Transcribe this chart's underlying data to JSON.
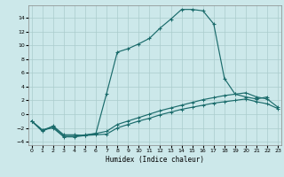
{
  "xlabel": "Humidex (Indice chaleur)",
  "bg_color": "#cce8ea",
  "grid_color": "#aacccc",
  "line_color": "#1a6b6b",
  "xlim": [
    -0.3,
    23.3
  ],
  "ylim": [
    -4.5,
    15.8
  ],
  "xticks": [
    0,
    1,
    2,
    3,
    4,
    5,
    6,
    7,
    8,
    9,
    10,
    11,
    12,
    13,
    14,
    15,
    16,
    17,
    18,
    19,
    20,
    21,
    22,
    23
  ],
  "yticks": [
    -4,
    -2,
    0,
    2,
    4,
    6,
    8,
    10,
    12,
    14
  ],
  "curve1_x": [
    0,
    1,
    2,
    3,
    4,
    5,
    6,
    7,
    8,
    9,
    10,
    11,
    12,
    13,
    14,
    15,
    16,
    17,
    18,
    19,
    20,
    21,
    22
  ],
  "curve1_y": [
    -1,
    -2.5,
    -1.7,
    -3.0,
    -3.0,
    -3.1,
    -2.8,
    3.0,
    9.0,
    9.5,
    10.2,
    11.0,
    12.5,
    13.8,
    15.2,
    15.2,
    15.0,
    13.1,
    5.2,
    2.9,
    2.5,
    2.2,
    2.5
  ],
  "curve2_x": [
    0,
    1,
    2,
    3,
    4,
    5,
    6,
    7,
    8,
    9,
    10,
    11,
    12,
    13,
    14,
    15,
    16,
    17,
    18,
    19,
    20,
    21,
    22,
    23
  ],
  "curve2_y": [
    -1.0,
    -2.3,
    -1.8,
    -3.2,
    -3.2,
    -3.0,
    -2.8,
    -2.5,
    -1.5,
    -1.0,
    -0.5,
    0.0,
    0.5,
    0.9,
    1.3,
    1.7,
    2.1,
    2.4,
    2.7,
    2.9,
    3.1,
    2.5,
    2.2,
    1.0
  ],
  "curve3_x": [
    0,
    1,
    2,
    3,
    4,
    5,
    6,
    7,
    8,
    9,
    10,
    11,
    12,
    13,
    14,
    15,
    16,
    17,
    18,
    19,
    20,
    21,
    22,
    23
  ],
  "curve3_y": [
    -1.0,
    -2.3,
    -2.0,
    -3.3,
    -3.3,
    -3.1,
    -3.0,
    -2.9,
    -2.0,
    -1.5,
    -1.0,
    -0.6,
    -0.1,
    0.3,
    0.7,
    1.0,
    1.3,
    1.6,
    1.8,
    2.0,
    2.2,
    1.8,
    1.5,
    0.8
  ]
}
